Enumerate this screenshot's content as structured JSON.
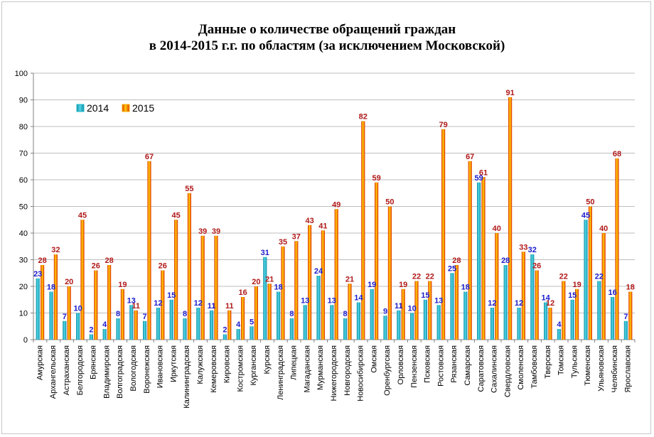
{
  "chart_data": {
    "type": "bar",
    "title_line1": "Данные о количестве обращений граждан",
    "title_line2": "в 2014-2015 г.г. по областям (за исключением Московской)",
    "xlabel": "",
    "ylabel": "",
    "ylim": [
      0,
      100
    ],
    "yticks": [
      "0",
      "10",
      "20",
      "30",
      "40",
      "50",
      "60",
      "70",
      "80",
      "90",
      "100"
    ],
    "grid": true,
    "legend_position": "top-left",
    "categories": [
      "Амурская",
      "Архангельская",
      "Астраханская",
      "Белгородская",
      "Брянская",
      "Владимирская",
      "Волгоградская",
      "Вологодская",
      "Воронежская",
      "Ивановская",
      "Иркутская",
      "Калининградская",
      "Калужская",
      "Кемеровская",
      "Кировская",
      "Костромская",
      "Курганская",
      "Курская",
      "Ленинградская",
      "Липецкая",
      "Магаданская",
      "Мурманская",
      "Нижегородская",
      "Новгородская",
      "Новосибирская",
      "Омская",
      "Оренбургская",
      "Орловская",
      "Пензенская",
      "Псковская",
      "Ростовская",
      "Рязанская",
      "Самарская",
      "Саратовская",
      "Сахалинская",
      "Свердловская",
      "Смоленская",
      "Тамбовская",
      "Тверская",
      "Томская",
      "Тульская",
      "Тюменская",
      "Ульяновская",
      "Челябинская",
      "Ярославская"
    ],
    "series": [
      {
        "name": "2014",
        "color": "#1fb5c8",
        "label_color": "#1a1acc",
        "values": [
          23,
          18,
          7,
          10,
          2,
          4,
          8,
          13,
          7,
          12,
          15,
          8,
          12,
          11,
          2,
          4,
          5,
          31,
          18,
          8,
          13,
          24,
          13,
          8,
          14,
          19,
          9,
          11,
          10,
          15,
          13,
          25,
          18,
          59,
          12,
          28,
          12,
          32,
          14,
          4,
          15,
          45,
          22,
          16,
          7
        ]
      },
      {
        "name": "2015",
        "color": "#f5a800",
        "label_color": "#b01818",
        "values": [
          28,
          32,
          20,
          45,
          26,
          28,
          19,
          11,
          67,
          26,
          45,
          55,
          39,
          39,
          11,
          16,
          20,
          21,
          35,
          37,
          43,
          41,
          49,
          21,
          82,
          59,
          50,
          19,
          22,
          22,
          79,
          28,
          67,
          61,
          40,
          91,
          33,
          26,
          12,
          22,
          19,
          50,
          40,
          68,
          18
        ]
      }
    ]
  }
}
